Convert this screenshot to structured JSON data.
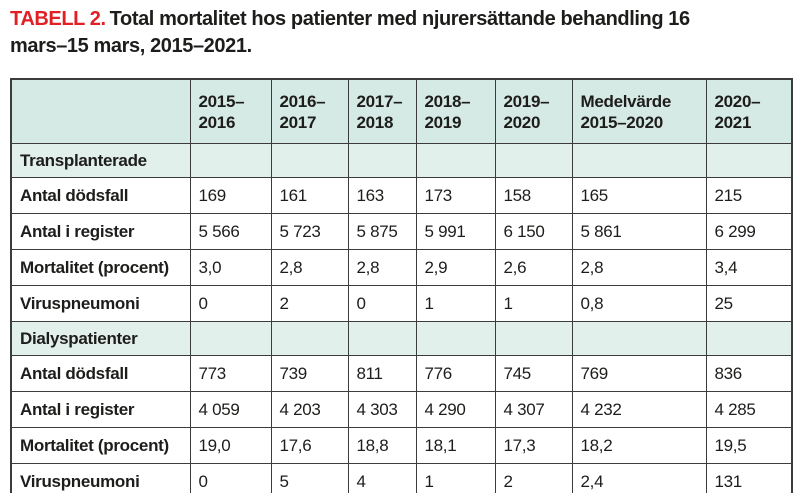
{
  "title": {
    "label": "TABELL 2.",
    "line1": "Total mortalitet hos patienter med njurersättande behandling 16",
    "line2": "mars–15 mars, 2015–2021."
  },
  "colors": {
    "accent_red": "#e02026",
    "header_bg": "#d6eae5",
    "section_bg": "#e2f0ec",
    "border": "#3c3c3c"
  },
  "table": {
    "columns": [
      "",
      "2015–\n2016",
      "2016–\n2017",
      "2017–\n2018",
      "2018–\n2019",
      "2019–\n2020",
      "Medelvärde\n2015–2020",
      "2020–\n2021"
    ],
    "sections": [
      {
        "label": "Transplanterade",
        "rows": [
          {
            "label": "Antal dödsfall",
            "values": [
              "169",
              "161",
              "163",
              "173",
              "158",
              "165",
              "215"
            ]
          },
          {
            "label": "Antal i register",
            "values": [
              "5 566",
              "5 723",
              "5 875",
              "5 991",
              "6 150",
              "5 861",
              "6 299"
            ]
          },
          {
            "label": "Mortalitet (procent)",
            "values": [
              "3,0",
              "2,8",
              "2,8",
              "2,9",
              "2,6",
              "2,8",
              "3,4"
            ]
          },
          {
            "label": "Viruspneumoni",
            "values": [
              "0",
              "2",
              "0",
              "1",
              "1",
              "0,8",
              "25"
            ]
          }
        ]
      },
      {
        "label": "Dialyspatienter",
        "rows": [
          {
            "label": "Antal dödsfall",
            "values": [
              "773",
              "739",
              "811",
              "776",
              "745",
              "769",
              "836"
            ]
          },
          {
            "label": "Antal i register",
            "values": [
              "4 059",
              "4 203",
              "4 303",
              "4 290",
              "4 307",
              "4 232",
              "4 285"
            ]
          },
          {
            "label": "Mortalitet (procent)",
            "values": [
              "19,0",
              "17,6",
              "18,8",
              "18,1",
              "17,3",
              "18,2",
              "19,5"
            ]
          },
          {
            "label": "Viruspneumoni",
            "values": [
              "0",
              "5",
              "4",
              "1",
              "2",
              "2,4",
              "131"
            ]
          }
        ]
      }
    ]
  }
}
